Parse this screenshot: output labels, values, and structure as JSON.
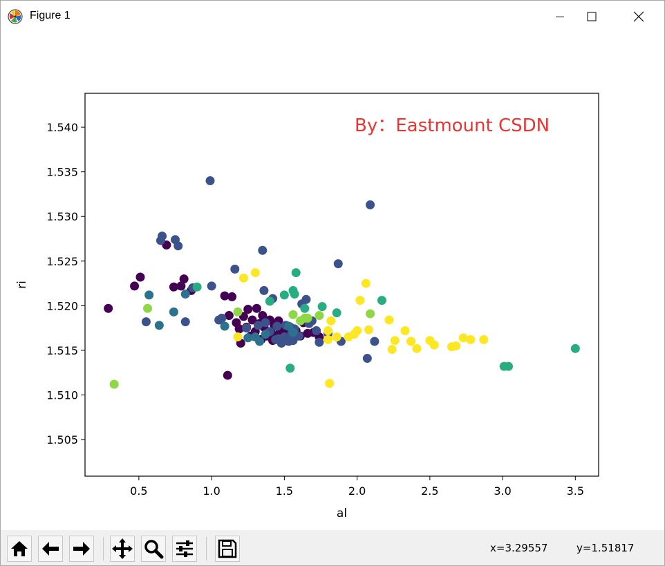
{
  "window": {
    "title": "Figure 1",
    "icons": {
      "app": "matplotlib-logo-icon",
      "minimize": "minimize-icon",
      "maximize": "maximize-icon",
      "close": "close-icon"
    }
  },
  "toolbar": {
    "buttons": [
      {
        "name": "home-button",
        "icon": "home-icon"
      },
      {
        "name": "back-button",
        "icon": "arrow-left-icon"
      },
      {
        "name": "forward-button",
        "icon": "arrow-right-icon"
      },
      {
        "name": "pan-button",
        "icon": "move-icon"
      },
      {
        "name": "zoom-button",
        "icon": "magnifier-icon"
      },
      {
        "name": "configure-subplots-button",
        "icon": "sliders-icon"
      },
      {
        "name": "save-button",
        "icon": "floppy-disk-icon"
      }
    ],
    "x_readout": "x=3.29557",
    "y_readout": "y=1.51817"
  },
  "chart_data": {
    "type": "scatter",
    "title": "",
    "xlabel": "al",
    "ylabel": "ri",
    "annotation": "By：Eastmount CSDN",
    "annotation_color": "#ee3333",
    "xlim": [
      0.13,
      3.66
    ],
    "ylim": [
      1.5009,
      1.5438
    ],
    "xticks": [
      0.5,
      1.0,
      1.5,
      2.0,
      2.5,
      3.0,
      3.5
    ],
    "xtick_labels": [
      "0.5",
      "1.0",
      "1.5",
      "2.0",
      "2.5",
      "3.0",
      "3.5"
    ],
    "yticks": [
      1.505,
      1.51,
      1.515,
      1.52,
      1.525,
      1.53,
      1.535,
      1.54
    ],
    "ytick_labels": [
      "1.505",
      "1.510",
      "1.515",
      "1.520",
      "1.525",
      "1.530",
      "1.535",
      "1.540"
    ],
    "grid": false,
    "colormap": "viridis",
    "series": [
      {
        "color": "#440154",
        "points": [
          [
            0.29,
            1.5197
          ],
          [
            0.47,
            1.5222
          ],
          [
            0.51,
            1.5232
          ],
          [
            0.69,
            1.5268
          ],
          [
            0.74,
            1.5221
          ],
          [
            0.79,
            1.5222
          ],
          [
            0.81,
            1.523
          ],
          [
            0.86,
            1.5217
          ],
          [
            1.09,
            1.5211
          ],
          [
            1.11,
            1.5122
          ],
          [
            1.12,
            1.5189
          ],
          [
            1.14,
            1.521
          ],
          [
            1.17,
            1.5181
          ],
          [
            1.19,
            1.5174
          ],
          [
            1.2,
            1.5158
          ],
          [
            1.22,
            1.5188
          ],
          [
            1.24,
            1.5176
          ],
          [
            1.25,
            1.5196
          ],
          [
            1.27,
            1.5166
          ],
          [
            1.28,
            1.5184
          ],
          [
            1.3,
            1.5171
          ],
          [
            1.31,
            1.5197
          ],
          [
            1.33,
            1.518
          ],
          [
            1.34,
            1.5162
          ],
          [
            1.35,
            1.5189
          ],
          [
            1.36,
            1.5176
          ],
          [
            1.38,
            1.5166
          ],
          [
            1.4,
            1.5184
          ],
          [
            1.41,
            1.517
          ],
          [
            1.42,
            1.5161
          ],
          [
            1.43,
            1.5178
          ],
          [
            1.45,
            1.5166
          ],
          [
            1.46,
            1.5183
          ],
          [
            1.47,
            1.517
          ],
          [
            1.48,
            1.5159
          ],
          [
            1.5,
            1.5173
          ],
          [
            1.52,
            1.5165
          ],
          [
            1.54,
            1.5176
          ],
          [
            1.55,
            1.5165
          ],
          [
            1.58,
            1.5172
          ],
          [
            1.61,
            1.5166
          ],
          [
            1.63,
            1.5181
          ],
          [
            1.66,
            1.5169
          ],
          [
            1.7,
            1.517
          ],
          [
            1.74,
            1.5165
          ]
        ]
      },
      {
        "color": "#3b528b",
        "points": [
          [
            0.65,
            1.5273
          ],
          [
            0.66,
            1.5278
          ],
          [
            0.75,
            1.5274
          ],
          [
            0.77,
            1.5267
          ],
          [
            0.55,
            1.5182
          ],
          [
            0.82,
            1.5182
          ],
          [
            0.87,
            1.522
          ],
          [
            0.99,
            1.534
          ],
          [
            1.0,
            1.5222
          ],
          [
            1.05,
            1.5184
          ],
          [
            1.07,
            1.5186
          ],
          [
            1.16,
            1.5241
          ],
          [
            1.24,
            1.5175
          ],
          [
            1.32,
            1.5178
          ],
          [
            1.35,
            1.5262
          ],
          [
            1.36,
            1.5217
          ],
          [
            1.37,
            1.5181
          ],
          [
            1.4,
            1.5171
          ],
          [
            1.42,
            1.5208
          ],
          [
            1.44,
            1.5162
          ],
          [
            1.45,
            1.5177
          ],
          [
            1.46,
            1.5163
          ],
          [
            1.48,
            1.5158
          ],
          [
            1.5,
            1.5165
          ],
          [
            1.51,
            1.5178
          ],
          [
            1.53,
            1.516
          ],
          [
            1.55,
            1.5169
          ],
          [
            1.56,
            1.5161
          ],
          [
            1.57,
            1.5174
          ],
          [
            1.6,
            1.5166
          ],
          [
            1.62,
            1.5202
          ],
          [
            1.65,
            1.5207
          ],
          [
            1.67,
            1.518
          ],
          [
            1.69,
            1.5183
          ],
          [
            1.72,
            1.5172
          ],
          [
            1.74,
            1.5159
          ],
          [
            1.8,
            1.5169
          ],
          [
            1.87,
            1.5247
          ],
          [
            1.89,
            1.516
          ],
          [
            2.07,
            1.5141
          ],
          [
            2.09,
            1.5313
          ],
          [
            2.12,
            1.516
          ]
        ]
      },
      {
        "color": "#2c728e",
        "points": [
          [
            0.57,
            1.5212
          ],
          [
            0.64,
            1.5178
          ],
          [
            0.74,
            1.5193
          ],
          [
            0.82,
            1.5213
          ],
          [
            1.09,
            1.5177
          ],
          [
            1.25,
            1.5164
          ],
          [
            1.3,
            1.5165
          ],
          [
            1.33,
            1.516
          ],
          [
            1.37,
            1.5168
          ],
          [
            1.53,
            1.5177
          ],
          [
            1.56,
            1.517
          ]
        ]
      },
      {
        "color": "#27ad81",
        "points": [
          [
            0.9,
            1.5221
          ],
          [
            1.4,
            1.5205
          ],
          [
            1.5,
            1.5212
          ],
          [
            1.56,
            1.5217
          ],
          [
            1.57,
            1.5213
          ],
          [
            1.58,
            1.5237
          ],
          [
            1.64,
            1.5197
          ],
          [
            1.76,
            1.5199
          ],
          [
            1.86,
            1.5192
          ],
          [
            2.17,
            1.5206
          ],
          [
            3.01,
            1.5132
          ],
          [
            3.04,
            1.5132
          ],
          [
            3.5,
            1.5152
          ],
          [
            1.54,
            1.513
          ]
        ]
      },
      {
        "color": "#8fd744",
        "points": [
          [
            0.33,
            1.5112
          ],
          [
            0.56,
            1.5197
          ],
          [
            1.18,
            1.5193
          ],
          [
            1.56,
            1.519
          ],
          [
            1.61,
            1.5183
          ],
          [
            1.64,
            1.5186
          ],
          [
            1.66,
            1.5186
          ],
          [
            1.74,
            1.5189
          ],
          [
            2.09,
            1.5191
          ]
        ]
      },
      {
        "color": "#fde725",
        "points": [
          [
            1.18,
            1.5165
          ],
          [
            1.22,
            1.5231
          ],
          [
            1.3,
            1.5237
          ],
          [
            1.8,
            1.5162
          ],
          [
            1.8,
            1.5172
          ],
          [
            1.81,
            1.5113
          ],
          [
            1.82,
            1.5183
          ],
          [
            1.86,
            1.5165
          ],
          [
            1.94,
            1.5165
          ],
          [
            1.98,
            1.5168
          ],
          [
            2.0,
            1.5172
          ],
          [
            2.02,
            1.5206
          ],
          [
            2.06,
            1.5225
          ],
          [
            2.08,
            1.5173
          ],
          [
            2.22,
            1.5184
          ],
          [
            2.24,
            1.5151
          ],
          [
            2.26,
            1.5161
          ],
          [
            2.33,
            1.5172
          ],
          [
            2.37,
            1.516
          ],
          [
            2.41,
            1.5152
          ],
          [
            2.5,
            1.5161
          ],
          [
            2.53,
            1.5156
          ],
          [
            2.65,
            1.5154
          ],
          [
            2.68,
            1.5155
          ],
          [
            2.73,
            1.5164
          ],
          [
            2.78,
            1.5162
          ],
          [
            2.87,
            1.5162
          ]
        ]
      }
    ]
  }
}
